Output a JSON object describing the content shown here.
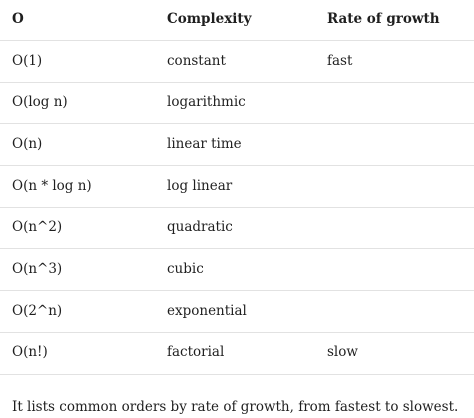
{
  "table": {
    "headers": [
      "O",
      "Complexity",
      "Rate of growth"
    ],
    "rows": [
      [
        "O(1)",
        "constant",
        "fast"
      ],
      [
        "O(log n)",
        "logarithmic",
        ""
      ],
      [
        "O(n)",
        "linear time",
        ""
      ],
      [
        "O(n * log n)",
        "log linear",
        ""
      ],
      [
        "O(n^2)",
        "quadratic",
        ""
      ],
      [
        "O(n^3)",
        "cubic",
        ""
      ],
      [
        "O(2^n)",
        "exponential",
        ""
      ],
      [
        "O(n!)",
        "factorial",
        "slow"
      ]
    ]
  },
  "caption": "It lists common orders by rate of growth, from fastest to slowest."
}
